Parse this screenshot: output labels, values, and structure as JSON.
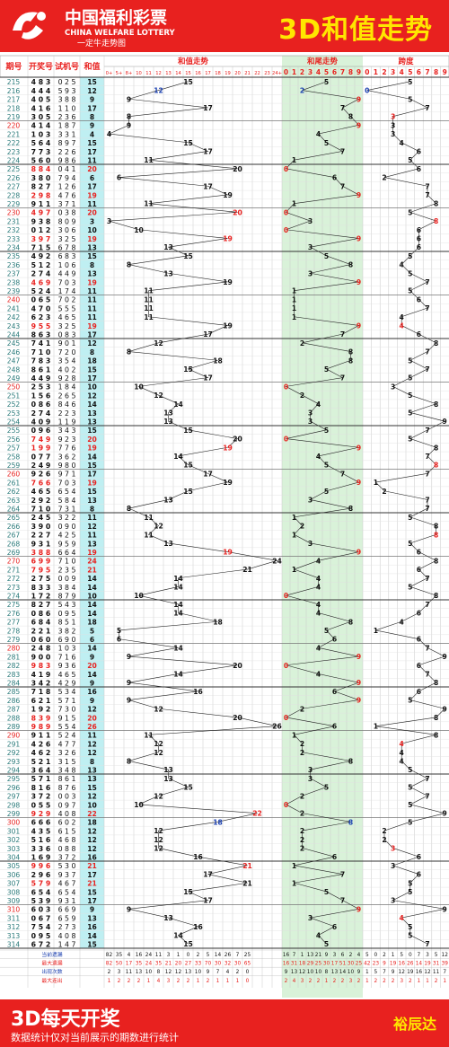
{
  "header": {
    "logo_cn": "中国福利彩票",
    "logo_en": "CHINA WELFARE LOTTERY",
    "logo_slogan": "一定牛走势图",
    "title": "3D和值走势"
  },
  "columns": {
    "period": "期号",
    "draw": "开奖号",
    "test": "试机号",
    "sum": "和值",
    "sum_trend": "和值走势",
    "tail_trend": "和尾走势",
    "span": "跨度"
  },
  "sum_buckets": [
    "0+",
    "5+",
    "8+",
    "10",
    "11",
    "12",
    "13",
    "14",
    "15",
    "16",
    "17",
    "18",
    "19",
    "20",
    "21",
    "22",
    "23",
    "24+"
  ],
  "stat_labels": [
    "当前遗漏",
    "最大遗漏",
    "出现次数",
    "最大连出"
  ],
  "stats_sum": [
    [
      "82",
      "35",
      "4",
      "16",
      "24",
      "11",
      "3",
      "1",
      "0",
      "2",
      "5",
      "14",
      "26",
      "7",
      "25"
    ],
    [
      "82",
      "50",
      "17",
      "35",
      "24",
      "35",
      "21",
      "20",
      "27",
      "33",
      "70",
      "30",
      "32",
      "30",
      "65"
    ],
    [
      "2",
      "3",
      "11",
      "13",
      "10",
      "8",
      "12",
      "12",
      "13",
      "10",
      "9",
      "7",
      "4",
      "2",
      "0"
    ],
    [
      "1",
      "2",
      "2",
      "2",
      "1",
      "4",
      "3",
      "2",
      "2",
      "1",
      "2",
      "1",
      "1",
      "1",
      "0"
    ]
  ],
  "stats_tail": [
    [
      "16",
      "7",
      "1",
      "13",
      "21",
      "9",
      "3",
      "6",
      "2",
      "4"
    ],
    [
      "16",
      "31",
      "18",
      "29",
      "25",
      "30",
      "17",
      "51",
      "30",
      "25"
    ],
    [
      "9",
      "13",
      "12",
      "10",
      "10",
      "8",
      "13",
      "14",
      "10",
      "9"
    ],
    [
      "2",
      "4",
      "3",
      "2",
      "2",
      "1",
      "2",
      "2",
      "3",
      "2"
    ]
  ],
  "stats_span": [
    [
      "5",
      "0",
      "2",
      "1",
      "5",
      "0",
      "7",
      "3",
      "5",
      "12"
    ],
    [
      "42",
      "23",
      "9",
      "19",
      "16",
      "26",
      "14",
      "19",
      "31",
      "39"
    ],
    [
      "1",
      "5",
      "7",
      "9",
      "12",
      "19",
      "16",
      "12",
      "11",
      "7"
    ],
    [
      "1",
      "2",
      "2",
      "2",
      "3",
      "2",
      "1",
      "1",
      "2",
      "1"
    ]
  ],
  "footer": {
    "headline": "3D每天开奖",
    "note": "数据统计仅对当前展示的期数进行统计",
    "author": "裕辰达"
  },
  "colors": {
    "red": "#e8211f",
    "yellow": "#ffe600",
    "blue": "#1a3fb0",
    "green_zone": "#d9f2d9",
    "cyan_col": "#bfeff2"
  },
  "chart_data": {
    "type": "line",
    "periods": [
      215,
      216,
      217,
      218,
      219,
      220,
      221,
      222,
      223,
      224,
      225,
      226,
      227,
      228,
      229,
      230,
      231,
      232,
      233,
      234,
      235,
      236,
      237,
      238,
      239,
      240,
      241,
      242,
      243,
      244,
      245,
      246,
      247,
      248,
      249,
      250,
      251,
      252,
      253,
      254,
      255,
      256,
      257,
      258,
      259,
      260,
      261,
      262,
      263,
      264,
      265,
      266,
      267,
      268,
      269,
      270,
      271,
      272,
      273,
      274,
      275,
      276,
      277,
      278,
      279,
      280,
      281,
      282,
      283,
      284,
      285,
      286,
      287,
      288,
      289,
      290,
      291,
      292,
      293,
      294,
      295,
      296,
      297,
      298,
      299,
      300,
      301,
      302,
      303,
      304,
      305,
      306,
      307,
      308,
      309,
      310,
      311,
      312,
      313,
      314
    ],
    "draws": [
      "483",
      "444",
      "405",
      "416",
      "305",
      "414",
      "103",
      "564",
      "773",
      "560",
      "884",
      "380",
      "827",
      "298",
      "911",
      "497",
      "938",
      "012",
      "397",
      "715",
      "492",
      "512",
      "274",
      "469",
      "524",
      "065",
      "470",
      "623",
      "955",
      "863",
      "741",
      "710",
      "783",
      "861",
      "449",
      "253",
      "156",
      "086",
      "274",
      "409",
      "096",
      "749",
      "199",
      "077",
      "249",
      "926",
      "766",
      "465",
      "292",
      "710",
      "245",
      "390",
      "227",
      "931",
      "388",
      "699",
      "795",
      "275",
      "833",
      "172",
      "827",
      "086",
      "684",
      "221",
      "060",
      "248",
      "900",
      "983",
      "419",
      "342",
      "718",
      "621",
      "192",
      "839",
      "989",
      "911",
      "426",
      "462",
      "521",
      "364",
      "571",
      "816",
      "372",
      "055",
      "929",
      "666",
      "435",
      "516",
      "336",
      "169",
      "996",
      "296",
      "579",
      "654",
      "539",
      "603",
      "067",
      "754",
      "095",
      "672"
    ],
    "tests": [
      "025",
      "593",
      "388",
      "110",
      "236",
      "187",
      "331",
      "897",
      "226",
      "986",
      "041",
      "794",
      "126",
      "476",
      "371",
      "038",
      "809",
      "306",
      "325",
      "678",
      "683",
      "106",
      "449",
      "703",
      "174",
      "702",
      "555",
      "465",
      "325",
      "083",
      "901",
      "720",
      "354",
      "402",
      "928",
      "184",
      "265",
      "846",
      "223",
      "119",
      "343",
      "923",
      "776",
      "362",
      "980",
      "971",
      "703",
      "654",
      "584",
      "731",
      "322",
      "090",
      "425",
      "959",
      "664",
      "710",
      "235",
      "009",
      "384",
      "879",
      "543",
      "095",
      "851",
      "382",
      "690",
      "103",
      "716",
      "936",
      "465",
      "429",
      "534",
      "571",
      "730",
      "915",
      "554",
      "524",
      "477",
      "326",
      "315",
      "348",
      "861",
      "876",
      "003",
      "097",
      "408",
      "602",
      "615",
      "468",
      "088",
      "372",
      "530",
      "937",
      "467",
      "654",
      "931",
      "669",
      "659",
      "273",
      "408",
      "147"
    ],
    "sums": [
      15,
      12,
      9,
      17,
      8,
      9,
      4,
      15,
      17,
      11,
      20,
      6,
      17,
      19,
      11,
      20,
      3,
      10,
      19,
      13,
      15,
      8,
      13,
      19,
      11,
      11,
      11,
      11,
      19,
      17,
      12,
      8,
      18,
      15,
      17,
      10,
      12,
      14,
      13,
      13,
      15,
      20,
      19,
      14,
      15,
      17,
      19,
      15,
      13,
      8,
      11,
      12,
      11,
      13,
      19,
      24,
      21,
      14,
      14,
      10,
      14,
      14,
      18,
      5,
      6,
      14,
      9,
      20,
      14,
      9,
      16,
      9,
      12,
      20,
      26,
      11,
      12,
      12,
      8,
      13,
      13,
      15,
      12,
      10,
      22,
      18,
      12,
      12,
      12,
      16,
      21,
      17,
      21,
      15,
      17,
      9,
      13,
      16,
      14,
      15
    ],
    "tails": [
      5,
      2,
      9,
      7,
      8,
      9,
      4,
      5,
      7,
      1,
      0,
      6,
      7,
      9,
      1,
      0,
      3,
      0,
      9,
      3,
      5,
      8,
      3,
      9,
      1,
      1,
      1,
      1,
      9,
      7,
      2,
      8,
      8,
      5,
      7,
      0,
      2,
      4,
      3,
      3,
      5,
      0,
      9,
      4,
      5,
      7,
      9,
      5,
      3,
      8,
      1,
      2,
      1,
      3,
      9,
      4,
      1,
      4,
      4,
      0,
      4,
      4,
      8,
      5,
      6,
      4,
      9,
      0,
      4,
      9,
      6,
      9,
      2,
      0,
      6,
      1,
      2,
      2,
      8,
      3,
      3,
      5,
      2,
      0,
      2,
      8,
      2,
      2,
      2,
      6,
      1,
      7,
      1,
      5,
      7,
      9,
      3,
      6,
      4,
      5
    ],
    "spans": [
      5,
      0,
      5,
      7,
      3,
      3,
      3,
      4,
      6,
      5,
      6,
      2,
      7,
      7,
      8,
      5,
      8,
      6,
      6,
      6,
      5,
      4,
      5,
      7,
      5,
      6,
      7,
      4,
      4,
      6,
      8,
      7,
      5,
      7,
      5,
      3,
      5,
      8,
      5,
      9,
      7,
      5,
      8,
      7,
      8,
      7,
      1,
      2,
      7,
      7,
      5,
      8,
      8,
      5,
      6,
      8,
      6,
      7,
      5,
      8,
      7,
      6,
      4,
      1,
      6,
      7,
      9,
      6,
      7,
      8,
      6,
      5,
      9,
      8,
      1,
      8,
      4,
      4,
      4,
      5,
      7,
      5,
      7,
      5,
      9,
      5,
      2,
      2,
      3,
      6,
      3,
      6,
      5,
      5,
      3,
      9,
      4,
      5,
      5,
      7
    ]
  }
}
